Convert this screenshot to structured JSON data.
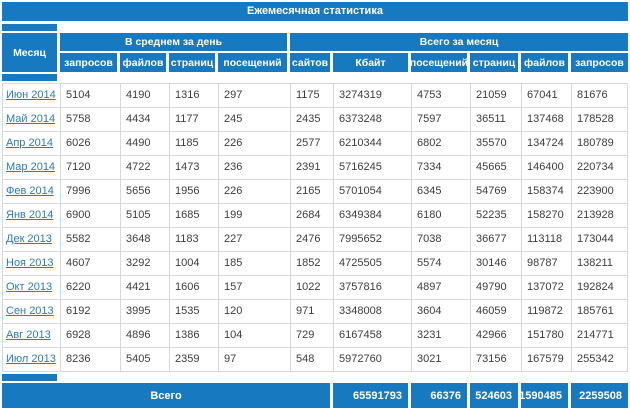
{
  "title": "Ежемесячная статистика",
  "colors": {
    "primary_blue": "#1779c0",
    "link_blue": "#2e7bb6",
    "grid_line": "#d8d8d8",
    "data_text": "#3d3d3d"
  },
  "table": {
    "month_header": "Месяц",
    "groups": [
      {
        "label": "В среднем за день",
        "columns": [
          "запросов",
          "файлов",
          "страниц",
          "посещений"
        ]
      },
      {
        "label": "Всего за месяц",
        "columns": [
          "сайтов",
          "Кбайт",
          "посещений",
          "страниц",
          "файлов",
          "запросов"
        ]
      }
    ],
    "rows": [
      {
        "month": "Июн 2014",
        "values": [
          5104,
          4190,
          1316,
          297,
          1175,
          3274319,
          4753,
          21059,
          67041,
          81676
        ]
      },
      {
        "month": "Май 2014",
        "values": [
          5758,
          4434,
          1177,
          245,
          2435,
          6373248,
          7597,
          36511,
          137468,
          178528
        ]
      },
      {
        "month": "Апр 2014",
        "values": [
          6026,
          4490,
          1185,
          226,
          2577,
          6210344,
          6802,
          35570,
          134724,
          180789
        ]
      },
      {
        "month": "Мар 2014",
        "values": [
          7120,
          4722,
          1473,
          236,
          2391,
          5716245,
          7334,
          45665,
          146400,
          220734
        ]
      },
      {
        "month": "Фев 2014",
        "values": [
          7996,
          5656,
          1956,
          226,
          2165,
          5701054,
          6345,
          54769,
          158374,
          223900
        ]
      },
      {
        "month": "Янв 2014",
        "values": [
          6900,
          5105,
          1685,
          199,
          2684,
          6349384,
          6180,
          52235,
          158270,
          213928
        ]
      },
      {
        "month": "Дек 2013",
        "values": [
          5582,
          3648,
          1183,
          227,
          2476,
          7995652,
          7038,
          36677,
          113118,
          173044
        ]
      },
      {
        "month": "Ноя 2013",
        "values": [
          4607,
          3292,
          1004,
          185,
          1852,
          4725505,
          5574,
          30146,
          98787,
          138211
        ]
      },
      {
        "month": "Окт 2013",
        "values": [
          6220,
          4421,
          1606,
          157,
          1022,
          3757816,
          4897,
          49790,
          137072,
          192824
        ]
      },
      {
        "month": "Сен 2013",
        "values": [
          6192,
          3995,
          1535,
          120,
          971,
          3348008,
          3604,
          46059,
          119872,
          185761
        ]
      },
      {
        "month": "Авг 2013",
        "values": [
          6928,
          4896,
          1386,
          104,
          729,
          6167458,
          3231,
          42966,
          151780,
          214771
        ]
      },
      {
        "month": "Июл 2013",
        "values": [
          8236,
          5405,
          2359,
          97,
          548,
          5972760,
          3021,
          73156,
          167579,
          255342
        ]
      }
    ],
    "footer": {
      "label": "Всего",
      "values": [
        65591793,
        66376,
        524603,
        1590485,
        2259508
      ]
    }
  }
}
